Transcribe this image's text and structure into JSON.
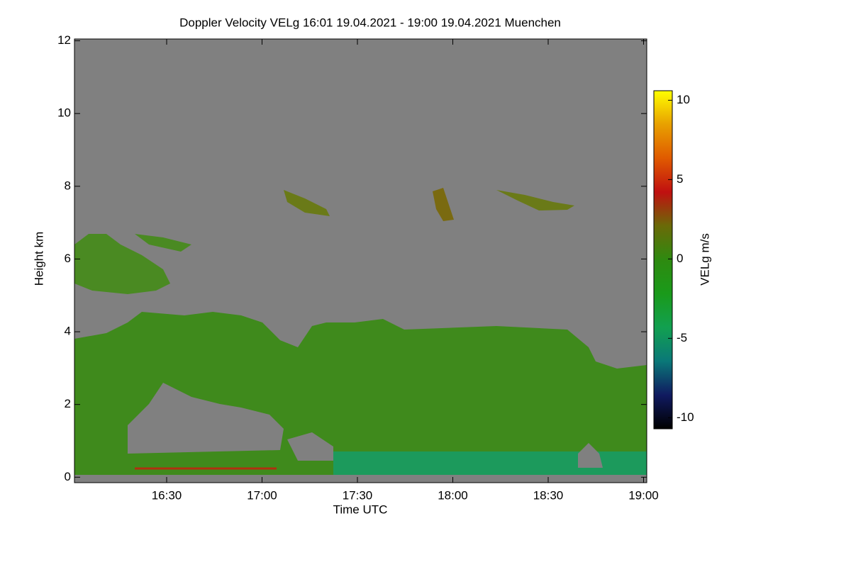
{
  "chart_data": {
    "type": "heatmap",
    "title": "Doppler Velocity VELg   16:01 19.04.2021 - 19:00 19.04.2021 Muenchen",
    "x_label": "Time UTC",
    "y_label": "Height km",
    "colorbar_label": "VELg m/s",
    "xlim": [
      16.0167,
      19.0167
    ],
    "xticks": [
      {
        "value": 16.5,
        "label": "16:30"
      },
      {
        "value": 17,
        "label": "17:00"
      },
      {
        "value": 17.5,
        "label": "17:30"
      },
      {
        "value": 18,
        "label": "18:00"
      },
      {
        "value": 18.5,
        "label": "18:30"
      },
      {
        "value": 19,
        "label": "19:00"
      }
    ],
    "ylim": [
      -0.15,
      12.05
    ],
    "yticks": [
      0,
      2,
      4,
      6,
      8,
      10,
      12
    ],
    "clim": [
      -10.7,
      10.6
    ],
    "cticks": [
      -10,
      -5,
      0,
      5,
      10
    ],
    "colormap": [
      "#000000",
      "#101a60",
      "#0a7878",
      "#12a050",
      "#1a9a1a",
      "#2e8a10",
      "#6a6a08",
      "#c01010",
      "#e05a00",
      "#e8a000",
      "#ffff00"
    ],
    "background": "#808080"
  }
}
